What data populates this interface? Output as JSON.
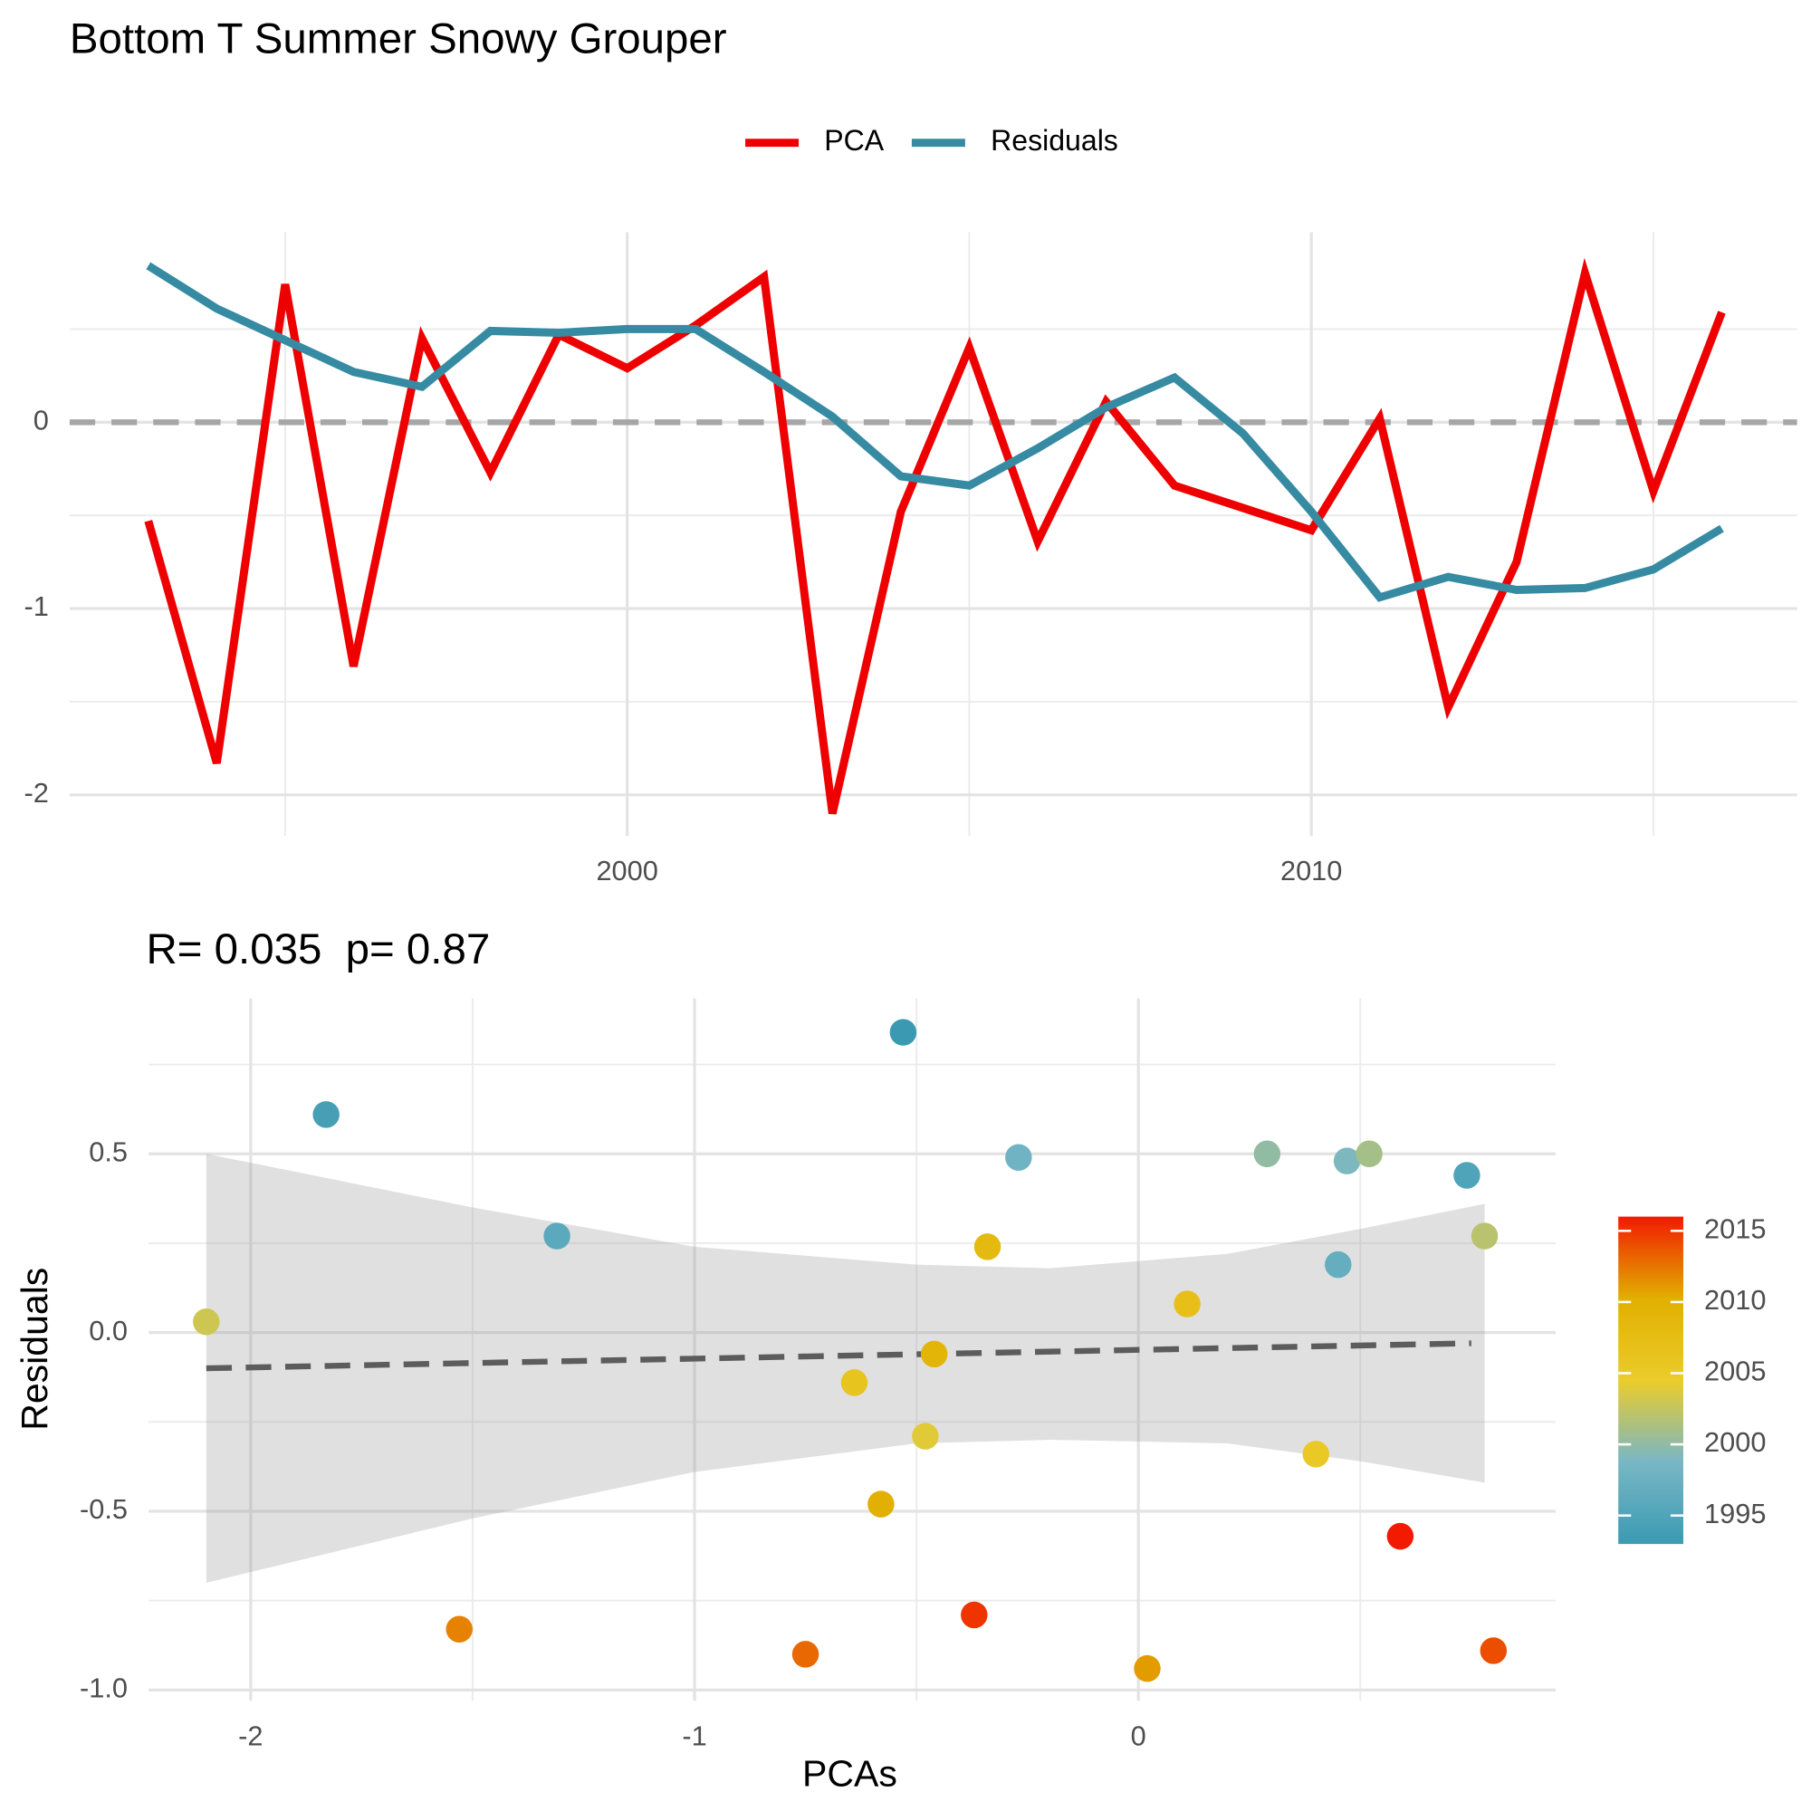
{
  "chart_data": [
    {
      "type": "line",
      "title": "Bottom T Summer Snowy Grouper",
      "x": [
        1993,
        1994,
        1995,
        1996,
        1997,
        1998,
        1999,
        2000,
        2001,
        2002,
        2003,
        2004,
        2005,
        2006,
        2007,
        2008,
        2009,
        2010,
        2011,
        2012,
        2013,
        2014,
        2015,
        2016
      ],
      "series": [
        {
          "name": "PCA",
          "color": "#ee0000",
          "values": [
            -0.53,
            -1.83,
            0.74,
            -1.31,
            0.45,
            -0.27,
            0.47,
            0.29,
            0.52,
            0.78,
            -2.1,
            -0.48,
            0.4,
            -0.64,
            0.11,
            -0.34,
            -0.46,
            -0.58,
            0.02,
            -1.53,
            -0.75,
            0.8,
            -0.37,
            0.59
          ]
        },
        {
          "name": "Residuals",
          "color": "#368ba3",
          "values": [
            0.84,
            0.61,
            0.44,
            0.27,
            0.19,
            0.49,
            0.48,
            0.5,
            0.5,
            0.27,
            0.03,
            -0.29,
            -0.34,
            -0.14,
            0.08,
            0.24,
            -0.06,
            -0.48,
            -0.94,
            -0.83,
            -0.9,
            -0.89,
            -0.79,
            -0.57
          ]
        }
      ],
      "xlim": [
        1991.85,
        2017.1
      ],
      "xticks": [
        2000,
        2010
      ],
      "xminor": [
        1995,
        2005,
        2015
      ],
      "ylim": [
        -2.22,
        1.02
      ],
      "yticks": [
        -2,
        -1,
        0
      ],
      "yminor": [
        -1.5,
        -0.5,
        0.5
      ],
      "hline": 0,
      "grid": true,
      "legend": "top"
    },
    {
      "type": "scatter",
      "title": "R= 0.035  p= 0.87",
      "xlabel": "PCAs",
      "ylabel": "Residuals",
      "x": [
        -0.53,
        -1.83,
        0.74,
        -1.31,
        0.45,
        -0.27,
        0.47,
        0.29,
        0.52,
        0.78,
        -2.1,
        -0.48,
        0.4,
        -0.64,
        0.11,
        -0.34,
        -0.46,
        -0.58,
        0.02,
        -1.53,
        -0.75,
        0.8,
        -0.37,
        0.59
      ],
      "y": [
        0.84,
        0.61,
        0.44,
        0.27,
        0.19,
        0.49,
        0.48,
        0.5,
        0.5,
        0.27,
        0.03,
        -0.29,
        -0.34,
        -0.14,
        0.08,
        0.24,
        -0.06,
        -0.48,
        -0.94,
        -0.83,
        -0.9,
        -0.89,
        -0.79,
        -0.57
      ],
      "color_values": [
        1993,
        1994,
        1995,
        1996,
        1997,
        1998,
        1999,
        2000,
        2001,
        2002,
        2003,
        2004,
        2005,
        2006,
        2007,
        2008,
        2009,
        2010,
        2011,
        2012,
        2013,
        2014,
        2015,
        2016
      ],
      "palette": [
        "#3b9ab2",
        "#78b7c5",
        "#ebcc2a",
        "#e1af00",
        "#f21a00"
      ],
      "color_lim": [
        1993,
        2016
      ],
      "color_ticks": [
        1995,
        2000,
        2005,
        2010,
        2015
      ],
      "fit": {
        "x": [
          -2.1,
          0.75
        ],
        "y": [
          -0.1,
          -0.03
        ]
      },
      "band": {
        "x": [
          -2.1,
          -1.5,
          -1.0,
          -0.5,
          -0.2,
          0.2,
          0.5,
          0.78
        ],
        "upper": [
          0.5,
          0.35,
          0.24,
          0.19,
          0.18,
          0.22,
          0.29,
          0.36
        ],
        "lower": [
          -0.7,
          -0.52,
          -0.39,
          -0.31,
          -0.3,
          -0.31,
          -0.36,
          -0.42
        ]
      },
      "xlim": [
        -2.23,
        0.94
      ],
      "xticks": [
        -2,
        -1,
        0
      ],
      "xminor": [
        -1.5,
        -0.5,
        0.5
      ],
      "ylim": [
        -1.03,
        0.935
      ],
      "yticks": [
        {
          "value": -1,
          "label": "-1.0"
        },
        -0.5,
        {
          "value": 0,
          "label": "0.0"
        },
        0.5
      ],
      "yminor": [
        -0.75,
        -0.25,
        0.25,
        0.75
      ],
      "grid": true,
      "legend": "right"
    }
  ]
}
